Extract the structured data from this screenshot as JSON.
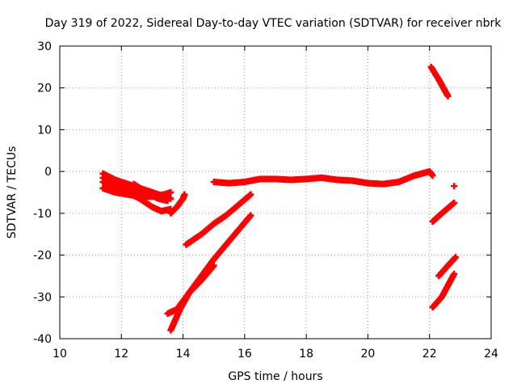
{
  "chart_data": {
    "type": "scatter",
    "title": "Day 319 of 2022, Sidereal Day-to-day VTEC variation (SDTVAR) for receiver nbrk",
    "xlabel": "GPS time / hours",
    "ylabel": "SDTVAR / TECUs",
    "xlim": [
      10,
      24
    ],
    "ylim": [
      -40,
      30
    ],
    "xticks": [
      10,
      12,
      14,
      16,
      18,
      20,
      22,
      24
    ],
    "yticks": [
      -40,
      -30,
      -20,
      -10,
      0,
      10,
      20,
      30
    ],
    "grid": true,
    "marker": "+",
    "color": "#ff0000",
    "segments": [
      {
        "points": [
          [
            11.4,
            -0.5
          ],
          [
            11.8,
            -2.0
          ],
          [
            12.2,
            -3.0
          ],
          [
            12.6,
            -4.0
          ],
          [
            13.0,
            -5.0
          ],
          [
            13.4,
            -6.0
          ],
          [
            13.6,
            -6.5
          ]
        ]
      },
      {
        "points": [
          [
            11.4,
            -1.5
          ],
          [
            11.8,
            -3.0
          ],
          [
            12.2,
            -4.0
          ],
          [
            12.6,
            -5.0
          ],
          [
            13.0,
            -6.0
          ],
          [
            13.4,
            -5.5
          ],
          [
            13.6,
            -5.0
          ]
        ]
      },
      {
        "points": [
          [
            11.4,
            -2.5
          ],
          [
            11.8,
            -4.0
          ],
          [
            12.2,
            -5.0
          ],
          [
            12.6,
            -6.5
          ],
          [
            13.0,
            -8.5
          ],
          [
            13.3,
            -9.5
          ],
          [
            13.6,
            -9.0
          ]
        ]
      },
      {
        "points": [
          [
            11.4,
            -4.0
          ],
          [
            11.8,
            -5.0
          ],
          [
            12.2,
            -5.5
          ],
          [
            12.6,
            -6.0
          ],
          [
            13.0,
            -6.0
          ],
          [
            13.4,
            -5.5
          ]
        ]
      },
      {
        "points": [
          [
            12.4,
            -3.0
          ],
          [
            12.8,
            -5.0
          ],
          [
            13.2,
            -6.5
          ],
          [
            13.5,
            -7.0
          ]
        ]
      },
      {
        "points": [
          [
            13.6,
            -10.0
          ],
          [
            13.8,
            -8.5
          ],
          [
            14.0,
            -6.5
          ],
          [
            14.05,
            -5.5
          ]
        ]
      },
      {
        "points": [
          [
            13.5,
            -34.0
          ],
          [
            13.8,
            -33.0
          ],
          [
            14.2,
            -29.0
          ],
          [
            14.6,
            -25.0
          ],
          [
            15.0,
            -21.0
          ],
          [
            15.4,
            -17.5
          ],
          [
            15.8,
            -14.0
          ],
          [
            16.2,
            -10.5
          ]
        ]
      },
      {
        "points": [
          [
            13.6,
            -38.0
          ],
          [
            13.9,
            -33.0
          ],
          [
            14.2,
            -29.0
          ],
          [
            14.6,
            -26.0
          ],
          [
            15.0,
            -22.5
          ]
        ]
      },
      {
        "points": [
          [
            14.1,
            -17.5
          ],
          [
            14.6,
            -15.0
          ],
          [
            15.0,
            -12.5
          ],
          [
            15.4,
            -10.5
          ],
          [
            15.8,
            -8.0
          ],
          [
            16.2,
            -5.5
          ]
        ]
      },
      {
        "points": [
          [
            15.0,
            -2.5
          ],
          [
            15.5,
            -2.8
          ],
          [
            16.0,
            -2.5
          ],
          [
            16.5,
            -1.8
          ],
          [
            17.0,
            -1.8
          ],
          [
            17.5,
            -2.0
          ],
          [
            18.0,
            -1.8
          ],
          [
            18.5,
            -1.5
          ],
          [
            19.0,
            -2.0
          ],
          [
            19.5,
            -2.2
          ],
          [
            20.0,
            -2.8
          ],
          [
            20.5,
            -3.0
          ],
          [
            21.0,
            -2.5
          ],
          [
            21.5,
            -1.0
          ],
          [
            22.0,
            0.0
          ],
          [
            22.1,
            -1.0
          ]
        ]
      },
      {
        "points": [
          [
            22.05,
            25.0
          ],
          [
            22.3,
            22.0
          ],
          [
            22.6,
            18.0
          ]
        ]
      },
      {
        "points": [
          [
            22.1,
            -12.0
          ],
          [
            22.4,
            -10.0
          ],
          [
            22.8,
            -7.5
          ]
        ]
      },
      {
        "points": [
          [
            22.1,
            -32.5
          ],
          [
            22.4,
            -30.0
          ],
          [
            22.8,
            -24.5
          ]
        ]
      },
      {
        "points": [
          [
            22.3,
            -25.0
          ],
          [
            22.6,
            -22.5
          ],
          [
            22.85,
            -20.5
          ]
        ]
      },
      {
        "points": [
          [
            22.8,
            -3.5
          ]
        ]
      }
    ]
  }
}
